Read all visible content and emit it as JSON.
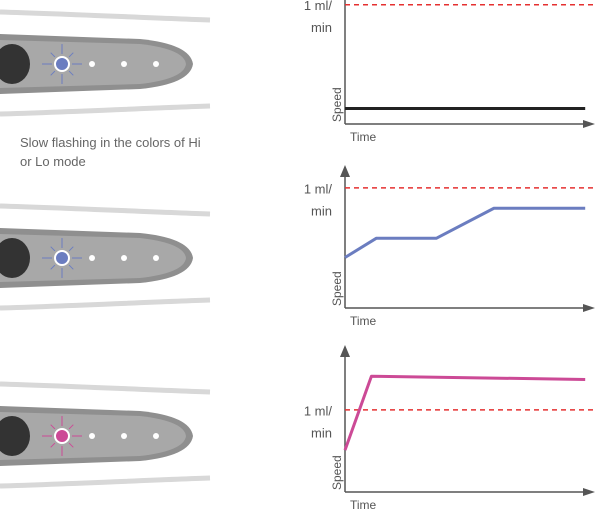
{
  "caption": "Slow flashing in the colors of Hi or Lo mode",
  "chart_data": [
    {
      "type": "line",
      "x_label": "Time",
      "y_label": "Speed",
      "threshold": {
        "value": 1,
        "label": [
          "1 ml/",
          "min"
        ],
        "color": "#e53030"
      },
      "x": [
        0,
        1
      ],
      "values": [
        0.13,
        0.13
      ],
      "color": "#222222",
      "xlim": [
        0,
        1.02
      ],
      "ylim": [
        0,
        1.04
      ]
    },
    {
      "type": "line",
      "x_label": "Time",
      "y_label": "Speed",
      "threshold": {
        "value": 1,
        "label": [
          "1 ml/",
          "min"
        ],
        "color": "#e53030"
      },
      "x": [
        0,
        0.13,
        0.38,
        0.62,
        1
      ],
      "values": [
        0.42,
        0.58,
        0.58,
        0.83,
        0.83
      ],
      "color": "#6b7dc0",
      "xlim": [
        0,
        1.02
      ],
      "ylim": [
        0,
        1.19
      ]
    },
    {
      "type": "line",
      "x_label": "Time",
      "y_label": "Speed",
      "threshold": {
        "value": 1,
        "label": [
          "1 ml/",
          "min"
        ],
        "color": "#e53030"
      },
      "x": [
        0,
        0.11,
        1
      ],
      "values": [
        0.51,
        1.41,
        1.37
      ],
      "color": "#cc4a96",
      "xlim": [
        0,
        1.02
      ],
      "ylim": [
        0,
        1.79
      ]
    }
  ]
}
